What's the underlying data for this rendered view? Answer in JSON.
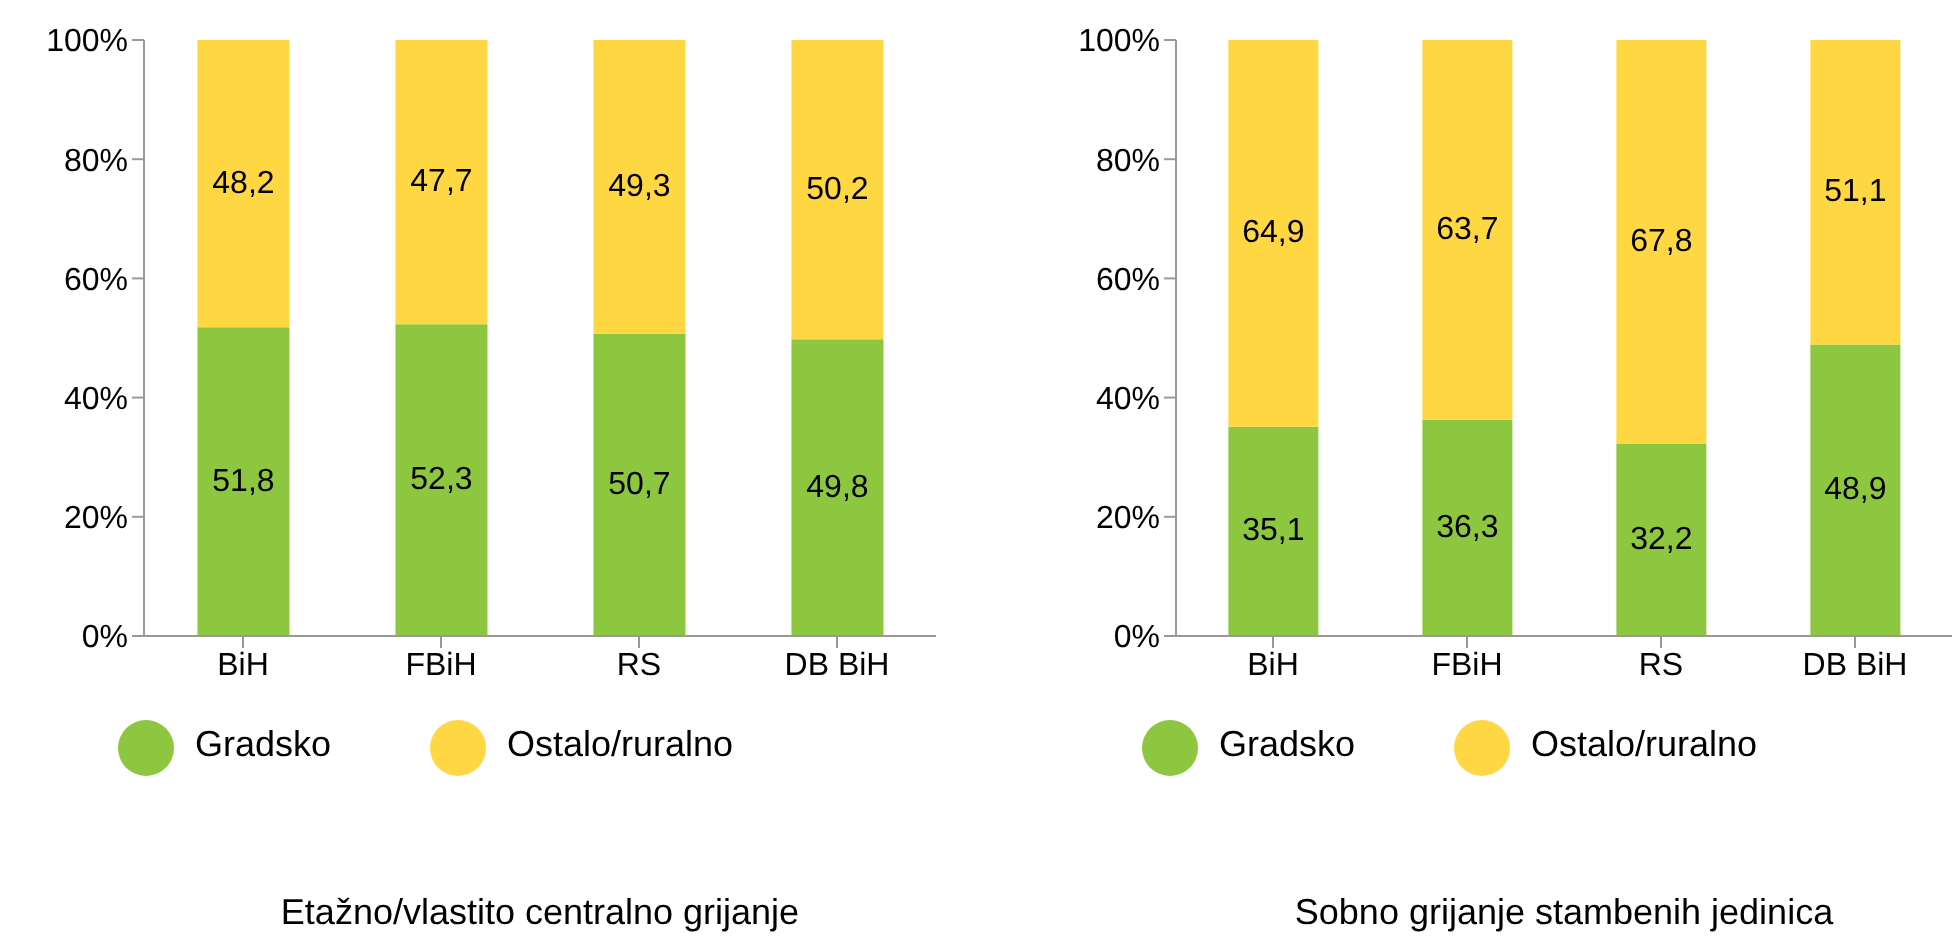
{
  "chart_data": [
    {
      "type": "bar",
      "stacked": true,
      "title": "Etažno/vlastito centralno grijanje",
      "categories": [
        "BiH",
        "FBiH",
        "RS",
        "DB BiH"
      ],
      "series": [
        {
          "name": "Gradsko",
          "color": "#8dc63f",
          "values": [
            51.8,
            52.3,
            50.7,
            49.8
          ],
          "value_labels": [
            "51,8",
            "52,3",
            "50,7",
            "49,8"
          ]
        },
        {
          "name": "Ostalo/ruralno",
          "color": "#ffd743",
          "values": [
            48.2,
            47.7,
            49.3,
            50.2
          ],
          "value_labels": [
            "48,2",
            "47,7",
            "49,3",
            "50,2"
          ]
        }
      ],
      "ylim": [
        0,
        100
      ],
      "yticks": [
        {
          "value": 0,
          "label": "0%"
        },
        {
          "value": 20,
          "label": "20%"
        },
        {
          "value": 40,
          "label": "40%"
        },
        {
          "value": 60,
          "label": "60%"
        },
        {
          "value": 80,
          "label": "80%"
        },
        {
          "value": 100,
          "label": "100%"
        }
      ],
      "legend": "bottom",
      "grid": false
    },
    {
      "type": "bar",
      "stacked": true,
      "title": "Sobno grijanje stambenih jedinica",
      "categories": [
        "BiH",
        "FBiH",
        "RS",
        "DB BiH"
      ],
      "series": [
        {
          "name": "Gradsko",
          "color": "#8dc63f",
          "values": [
            35.1,
            36.3,
            32.2,
            48.9
          ],
          "value_labels": [
            "35,1",
            "36,3",
            "32,2",
            "48,9"
          ]
        },
        {
          "name": "Ostalo/ruralno",
          "color": "#ffd743",
          "values": [
            64.9,
            63.7,
            67.8,
            51.1
          ],
          "value_labels": [
            "64,9",
            "63,7",
            "67,8",
            "51,1"
          ]
        }
      ],
      "ylim": [
        0,
        100
      ],
      "yticks": [
        {
          "value": 0,
          "label": "0%"
        },
        {
          "value": 20,
          "label": "20%"
        },
        {
          "value": 40,
          "label": "40%"
        },
        {
          "value": 60,
          "label": "60%"
        },
        {
          "value": 80,
          "label": "80%"
        },
        {
          "value": 100,
          "label": "100%"
        }
      ],
      "legend": "bottom",
      "grid": false
    }
  ]
}
